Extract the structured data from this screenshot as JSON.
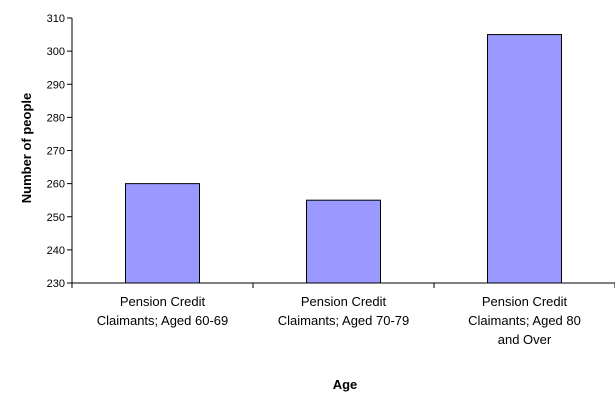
{
  "chart_data": {
    "type": "bar",
    "categories": [
      [
        "Pension Credit",
        "Claimants; Aged 60-69"
      ],
      [
        "Pension Credit",
        "Claimants; Aged 70-79"
      ],
      [
        "Pension Credit",
        "Claimants; Aged 80",
        "and Over"
      ]
    ],
    "values": [
      260,
      255,
      305
    ],
    "xlabel": "Age",
    "ylabel": "Number of people",
    "ylim": [
      230,
      310
    ],
    "yticks": [
      230,
      240,
      250,
      260,
      270,
      280,
      290,
      300,
      310
    ],
    "grid": false,
    "legend": "none",
    "colors": {
      "bar_fill": "#9999ff",
      "bar_stroke": "#000000",
      "axis": "#000000"
    }
  }
}
